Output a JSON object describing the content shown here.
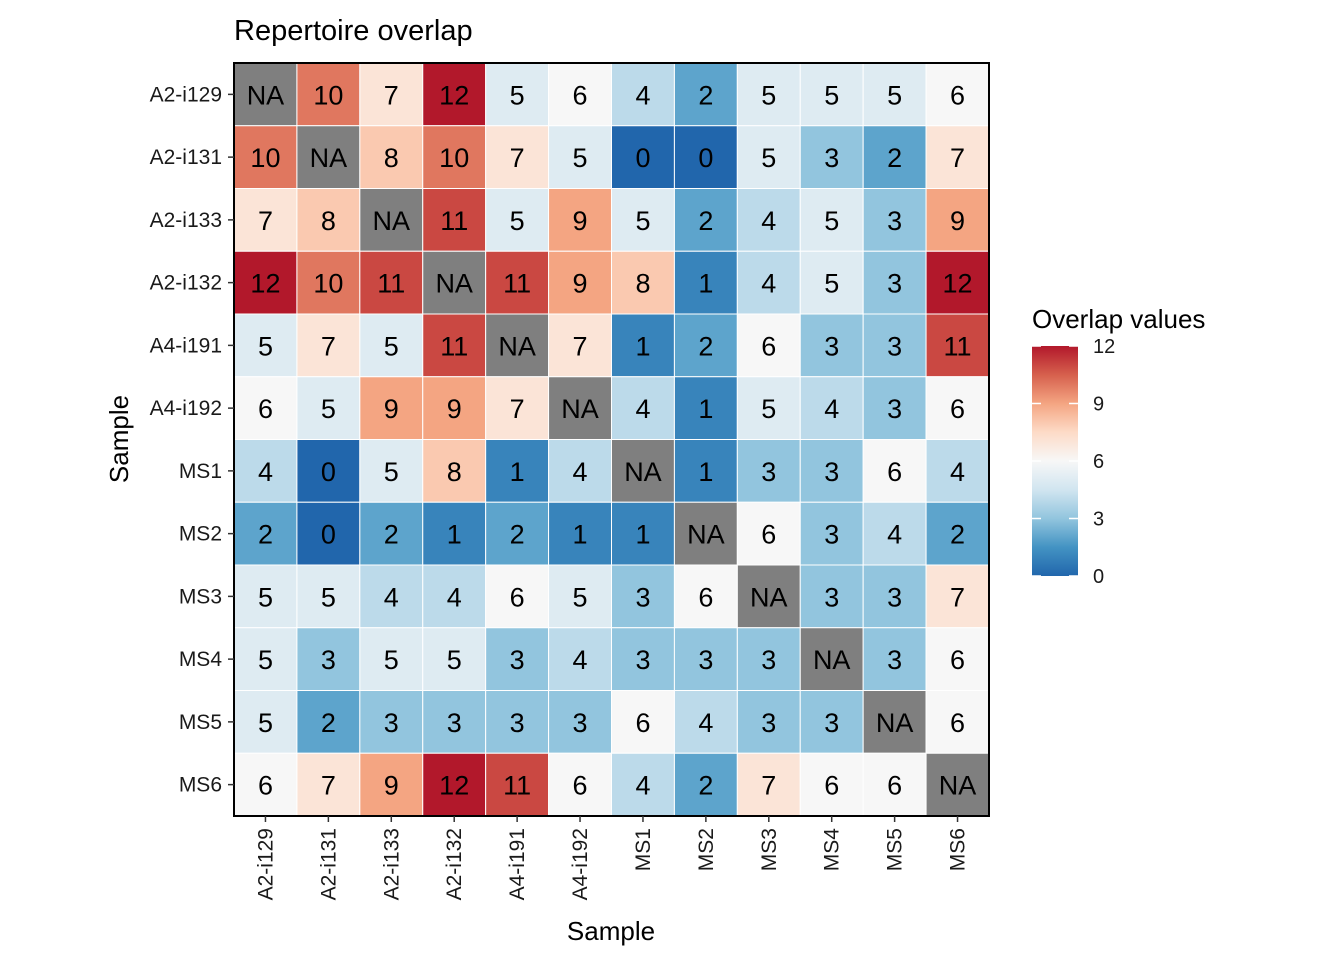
{
  "chart_data": {
    "type": "heatmap",
    "title": "Repertoire overlap",
    "xlabel": "Sample",
    "ylabel": "Sample",
    "samples": [
      "A2-i129",
      "A2-i131",
      "A2-i133",
      "A2-i132",
      "A4-i191",
      "A4-i192",
      "MS1",
      "MS2",
      "MS3",
      "MS4",
      "MS5",
      "MS6"
    ],
    "values": [
      [
        null,
        10,
        7,
        12,
        5,
        6,
        4,
        2,
        5,
        5,
        5,
        6
      ],
      [
        10,
        null,
        8,
        10,
        7,
        5,
        0,
        0,
        5,
        3,
        2,
        7
      ],
      [
        7,
        8,
        null,
        11,
        5,
        9,
        5,
        2,
        4,
        5,
        3,
        9
      ],
      [
        12,
        10,
        11,
        null,
        11,
        9,
        8,
        1,
        4,
        5,
        3,
        12
      ],
      [
        5,
        7,
        5,
        11,
        null,
        7,
        1,
        2,
        6,
        3,
        3,
        11
      ],
      [
        6,
        5,
        9,
        9,
        7,
        null,
        4,
        1,
        5,
        4,
        3,
        6
      ],
      [
        4,
        0,
        5,
        8,
        1,
        4,
        null,
        1,
        3,
        3,
        6,
        4
      ],
      [
        2,
        0,
        2,
        1,
        2,
        1,
        1,
        null,
        6,
        3,
        4,
        2
      ],
      [
        5,
        5,
        4,
        4,
        6,
        5,
        3,
        6,
        null,
        3,
        3,
        7
      ],
      [
        5,
        3,
        5,
        5,
        3,
        4,
        3,
        3,
        3,
        null,
        3,
        6
      ],
      [
        5,
        2,
        3,
        3,
        3,
        3,
        6,
        4,
        3,
        3,
        null,
        6
      ],
      [
        6,
        7,
        9,
        12,
        11,
        6,
        4,
        2,
        7,
        6,
        6,
        null
      ]
    ],
    "na_label": "NA",
    "na_color": "#7f7f7f",
    "legend": {
      "title": "Overlap values",
      "ticks": [
        0,
        3,
        6,
        9,
        12
      ],
      "placement": "right"
    },
    "colorscale": [
      "#2166ac",
      "#4393c3",
      "#92c5de",
      "#d1e5f0",
      "#f7f7f7",
      "#fddbc7",
      "#f4a582",
      "#d6604d",
      "#b2182b"
    ],
    "zlim": [
      0,
      12
    ]
  }
}
